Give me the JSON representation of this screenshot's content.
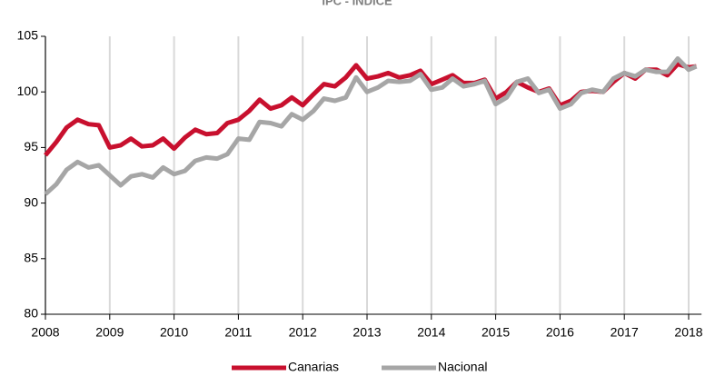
{
  "chart_data": {
    "type": "line",
    "title": "IPC - ÍNDICE",
    "x": [
      2008.0,
      2008.17,
      2008.33,
      2008.5,
      2008.67,
      2008.83,
      2009.0,
      2009.17,
      2009.33,
      2009.5,
      2009.67,
      2009.83,
      2010.0,
      2010.17,
      2010.33,
      2010.5,
      2010.67,
      2010.83,
      2011.0,
      2011.17,
      2011.33,
      2011.5,
      2011.67,
      2011.83,
      2012.0,
      2012.17,
      2012.33,
      2012.5,
      2012.67,
      2012.83,
      2013.0,
      2013.17,
      2013.33,
      2013.5,
      2013.67,
      2013.83,
      2014.0,
      2014.17,
      2014.33,
      2014.5,
      2014.67,
      2014.83,
      2015.0,
      2015.17,
      2015.33,
      2015.5,
      2015.67,
      2015.83,
      2016.0,
      2016.17,
      2016.33,
      2016.5,
      2016.67,
      2016.83,
      2017.0,
      2017.17,
      2017.33,
      2017.5,
      2017.67,
      2017.83,
      2018.0,
      2018.12
    ],
    "series": [
      {
        "name": "Canarias",
        "color": "#c8102e",
        "values": [
          94.3,
          95.5,
          96.8,
          97.5,
          97.1,
          97.0,
          95.0,
          95.2,
          95.8,
          95.1,
          95.2,
          95.8,
          94.9,
          95.9,
          96.6,
          96.2,
          96.3,
          97.2,
          97.5,
          98.3,
          99.3,
          98.5,
          98.8,
          99.5,
          98.8,
          99.8,
          100.7,
          100.5,
          101.3,
          102.4,
          101.2,
          101.4,
          101.7,
          101.3,
          101.5,
          101.9,
          100.7,
          101.1,
          101.5,
          100.8,
          100.8,
          101.1,
          99.4,
          100.0,
          100.9,
          100.4,
          100.0,
          100.3,
          98.8,
          99.2,
          100.0,
          100.1,
          100.0,
          100.9,
          101.7,
          101.2,
          102.0,
          102.0,
          101.5,
          102.5,
          102.2,
          102.3
        ]
      },
      {
        "name": "Nacional",
        "color": "#a6a6a6",
        "values": [
          90.8,
          91.7,
          93.0,
          93.7,
          93.2,
          93.4,
          92.5,
          91.6,
          92.4,
          92.6,
          92.3,
          93.2,
          92.6,
          92.9,
          93.8,
          94.1,
          94.0,
          94.4,
          95.8,
          95.7,
          97.3,
          97.2,
          96.9,
          98.0,
          97.5,
          98.3,
          99.4,
          99.2,
          99.5,
          101.3,
          100.0,
          100.4,
          101.0,
          100.9,
          101.0,
          101.6,
          100.2,
          100.4,
          101.2,
          100.5,
          100.7,
          101.0,
          98.9,
          99.5,
          100.9,
          101.2,
          99.9,
          100.2,
          98.5,
          98.9,
          99.9,
          100.2,
          100.0,
          101.2,
          101.7,
          101.4,
          102.0,
          101.8,
          101.8,
          103.0,
          102.0,
          102.3
        ]
      }
    ],
    "xlim": [
      2008,
      2018.2
    ],
    "xticks": [
      2008,
      2009,
      2010,
      2011,
      2012,
      2013,
      2014,
      2015,
      2016,
      2017,
      2018
    ],
    "ylim": [
      80,
      105
    ],
    "yticks": [
      80,
      85,
      90,
      95,
      100,
      105
    ],
    "grid": "x",
    "legend": "bottom"
  }
}
